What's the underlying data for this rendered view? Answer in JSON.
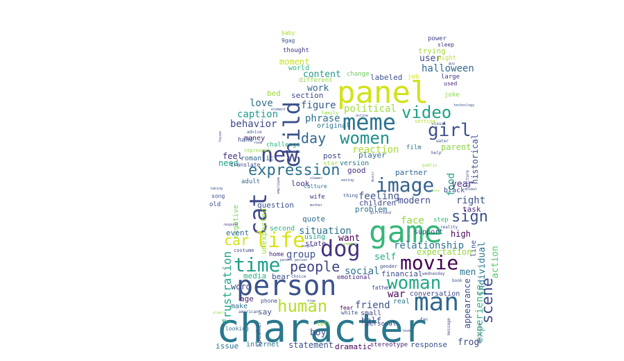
{
  "words": [
    {
      "text": "character",
      "color": "#2a788e"
    },
    {
      "text": "panel",
      "color": "#d2e21b"
    },
    {
      "text": "person",
      "color": "#3b528b"
    },
    {
      "text": "game",
      "color": "#35b779"
    },
    {
      "text": "meme",
      "color": "#2c728e"
    },
    {
      "text": "man",
      "color": "#31688e"
    },
    {
      "text": "movie",
      "color": "#440154"
    },
    {
      "text": "woman",
      "color": "#22a884"
    },
    {
      "text": "image",
      "color": "#33638d"
    },
    {
      "text": "dog",
      "color": "#46327e"
    },
    {
      "text": "cat",
      "color": "#3e4a89"
    },
    {
      "text": "child",
      "color": "#3b528b"
    },
    {
      "text": "new",
      "color": "#414487"
    },
    {
      "text": "life",
      "color": "#d8e219"
    },
    {
      "text": "time",
      "color": "#1f9e89"
    },
    {
      "text": "video",
      "color": "#1fa187"
    },
    {
      "text": "girl",
      "color": "#3b528b"
    },
    {
      "text": "women",
      "color": "#218f8d"
    },
    {
      "text": "human",
      "color": "#b5de2b"
    },
    {
      "text": "expression",
      "color": "#2d708e"
    },
    {
      "text": "scene",
      "color": "#3e4a89"
    },
    {
      "text": "people",
      "color": "#404688"
    },
    {
      "text": "car",
      "color": "#d2e21b"
    },
    {
      "text": "sign",
      "color": "#3b528b"
    },
    {
      "text": "day",
      "color": "#31688e"
    },
    {
      "text": "halloween",
      "color": "#31688e"
    },
    {
      "text": "user",
      "color": "#404688"
    },
    {
      "text": "trying",
      "color": "#a5db36"
    },
    {
      "text": "power",
      "color": "#3e4a89"
    },
    {
      "text": "sleep",
      "color": "#46337e"
    },
    {
      "text": "night",
      "color": "#c2df23"
    },
    {
      "text": "baby",
      "color": "#a2da37"
    },
    {
      "text": "9gag",
      "color": "#3b528b"
    },
    {
      "text": "thought",
      "color": "#46327e"
    },
    {
      "text": "moment",
      "color": "#c8e020"
    },
    {
      "text": "world",
      "color": "#2ab07f"
    },
    {
      "text": "different",
      "color": "#95d840"
    },
    {
      "text": "content",
      "color": "#1f9a8a"
    },
    {
      "text": "change",
      "color": "#6ccd5a"
    },
    {
      "text": "labeled",
      "color": "#3b528b"
    },
    {
      "text": "job",
      "color": "#d5e21a"
    },
    {
      "text": "large",
      "color": "#46337e"
    },
    {
      "text": "used",
      "color": "#482677"
    },
    {
      "text": "joke",
      "color": "#8bd646"
    },
    {
      "text": "work",
      "color": "#31688e"
    },
    {
      "text": "section",
      "color": "#3f4889"
    },
    {
      "text": "bed",
      "color": "#9bd93c"
    },
    {
      "text": "love",
      "color": "#2e6e8e"
    },
    {
      "text": "figure",
      "color": "#375a8c"
    },
    {
      "text": "political",
      "color": "#9fda3a"
    },
    {
      "text": "caption",
      "color": "#1f9a8a"
    },
    {
      "text": "phrase",
      "color": "#2d718e"
    },
    {
      "text": "original",
      "color": "#2e6e8e"
    },
    {
      "text": "behavior",
      "color": "#3f4788"
    },
    {
      "text": "parent",
      "color": "#8bd646"
    },
    {
      "text": "historical",
      "color": "#3b528b"
    },
    {
      "text": "money",
      "color": "#482475"
    },
    {
      "text": "hand",
      "color": "#3b528b"
    },
    {
      "text": "romantic",
      "color": "#31688e"
    },
    {
      "text": "challenge",
      "color": "#2ab07f"
    },
    {
      "text": "reaction",
      "color": "#a8db34"
    },
    {
      "text": "post",
      "color": "#3e4a89"
    },
    {
      "text": "player",
      "color": "#2e6e8e"
    },
    {
      "text": "film",
      "color": "#2c728e"
    },
    {
      "text": "feel",
      "color": "#472f7d"
    },
    {
      "text": "need",
      "color": "#1fa287"
    },
    {
      "text": "version",
      "color": "#2a788e"
    },
    {
      "text": "star",
      "color": "#a0da39"
    },
    {
      "text": "good",
      "color": "#46327e"
    },
    {
      "text": "partner",
      "color": "#31688e"
    },
    {
      "text": "food",
      "color": "#1fa187"
    },
    {
      "text": "year",
      "color": "#472a7a"
    },
    {
      "text": "right",
      "color": "#3b528b"
    },
    {
      "text": "feeling",
      "color": "#3b528b"
    },
    {
      "text": "children",
      "color": "#404688"
    },
    {
      "text": "modern",
      "color": "#3e4989"
    },
    {
      "text": "problem",
      "color": "#2c738e"
    },
    {
      "text": "black",
      "color": "#3e4a89"
    },
    {
      "text": "task",
      "color": "#482878"
    },
    {
      "text": "look",
      "color": "#46327e"
    },
    {
      "text": "wife",
      "color": "#472d7b"
    },
    {
      "text": "culture",
      "color": "#2a788e"
    },
    {
      "text": "adult",
      "color": "#31688e"
    },
    {
      "text": "question",
      "color": "#3b528b"
    },
    {
      "text": "negative",
      "color": "#7ad151"
    },
    {
      "text": "unexpected",
      "color": "#9fda3a"
    },
    {
      "text": "quote",
      "color": "#2f6c8e"
    },
    {
      "text": "face",
      "color": "#8fd744"
    },
    {
      "text": "step",
      "color": "#35b779"
    },
    {
      "text": "support",
      "color": "#3e4a89"
    },
    {
      "text": "situation",
      "color": "#2c728e"
    },
    {
      "text": "event",
      "color": "#31688e"
    },
    {
      "text": "second",
      "color": "#2ab07f"
    },
    {
      "text": "want",
      "color": "#440154"
    },
    {
      "text": "using",
      "color": "#1fa188"
    },
    {
      "text": "relationship",
      "color": "#2b758e"
    },
    {
      "text": "high",
      "color": "#440154"
    },
    {
      "text": "line",
      "color": "#3e4a89"
    },
    {
      "text": "expectation",
      "color": "#95d840"
    },
    {
      "text": "individual",
      "color": "#2a788e"
    },
    {
      "text": "action",
      "color": "#54c568"
    },
    {
      "text": "group",
      "color": "#3b528b"
    },
    {
      "text": "state",
      "color": "#46327e"
    },
    {
      "text": "self",
      "color": "#22a785"
    },
    {
      "text": "home",
      "color": "#482878"
    },
    {
      "text": "frustration",
      "color": "#20a486"
    },
    {
      "text": "social",
      "color": "#2d718e"
    },
    {
      "text": "men",
      "color": "#2c738e"
    },
    {
      "text": "experience",
      "color": "#35b779"
    },
    {
      "text": "appearance",
      "color": "#3e4a89"
    },
    {
      "text": "media",
      "color": "#2ab07f"
    },
    {
      "text": "bear",
      "color": "#3b528b"
    },
    {
      "text": "emotional",
      "color": "#482576"
    },
    {
      "text": "financial",
      "color": "#3e4a89"
    },
    {
      "text": "war",
      "color": "#440154"
    },
    {
      "text": "word",
      "color": "#3e4a89"
    },
    {
      "text": "age",
      "color": "#482475"
    },
    {
      "text": "make",
      "color": "#2c728e"
    },
    {
      "text": "say",
      "color": "#3e4a89"
    },
    {
      "text": "friend",
      "color": "#3b528b"
    },
    {
      "text": "real",
      "color": "#2c728e"
    },
    {
      "text": "conversation",
      "color": "#3e4a89"
    },
    {
      "text": "half",
      "color": "#3e4a89"
    },
    {
      "text": "small",
      "color": "#404688"
    },
    {
      "text": "white",
      "color": "#3b528b"
    },
    {
      "text": "boy",
      "color": "#3b528b"
    },
    {
      "text": "frog",
      "color": "#3e4a89"
    },
    {
      "text": "issue",
      "color": "#2c728e"
    },
    {
      "text": "internet",
      "color": "#2c728e"
    },
    {
      "text": "statement",
      "color": "#3b528b"
    },
    {
      "text": "dramatic",
      "color": "#440154"
    },
    {
      "text": "stereotype",
      "color": "#482878"
    },
    {
      "text": "response",
      "color": "#3b528b"
    },
    {
      "text": "personal",
      "color": "#3e4a89"
    },
    {
      "text": "phone",
      "color": "#3e4a89"
    },
    {
      "text": "looking",
      "color": "#2c728e"
    },
    {
      "text": "speaker",
      "color": "#3b528b"
    },
    {
      "text": "old",
      "color": "#3e4a89"
    },
    {
      "text": "song",
      "color": "#3e4a89"
    },
    {
      "text": "taking",
      "color": "#3b528b"
    },
    {
      "text": "respond",
      "color": "#46327e"
    },
    {
      "text": "costume",
      "color": "#3e4a89"
    },
    {
      "text": "american",
      "color": "#3b528b"
    },
    {
      "text": "translate",
      "color": "#3e4a89"
    },
    {
      "text": "represent",
      "color": "#8fd744"
    },
    {
      "text": "advice",
      "color": "#3b528b"
    },
    {
      "text": "fear",
      "color": "#440154"
    },
    {
      "text": "father",
      "color": "#3e4a89"
    },
    {
      "text": "gender",
      "color": "#3e4a89"
    },
    {
      "text": "left",
      "color": "#8fd744"
    },
    {
      "text": "public",
      "color": "#8fd744"
    },
    {
      "text": "help",
      "color": "#3e4a89"
    },
    {
      "text": "water",
      "color": "#3b528b"
    },
    {
      "text": "visual",
      "color": "#3e4a89"
    },
    {
      "text": "setting",
      "color": "#b5de2b"
    },
    {
      "text": "online",
      "color": "#3e4a89"
    },
    {
      "text": "family",
      "color": "#8fd744"
    },
    {
      "text": "technology",
      "color": "#3b528b"
    },
    {
      "text": "animal",
      "color": "#3e4a89"
    },
    {
      "text": "picture",
      "color": "#3e4a89"
    },
    {
      "text": "boss",
      "color": "#8fd744"
    },
    {
      "text": "reality",
      "color": "#3e4a89"
    },
    {
      "text": "choice",
      "color": "#3b528b"
    },
    {
      "text": "wednesday",
      "color": "#3e4a89"
    },
    {
      "text": "book",
      "color": "#3b528b"
    },
    {
      "text": "level",
      "color": "#3e4a89"
    },
    {
      "text": "fan",
      "color": "#3e4a89"
    },
    {
      "text": "decision",
      "color": "#3b528b"
    },
    {
      "text": "message",
      "color": "#3e4a89"
    },
    {
      "text": "older",
      "color": "#8fd744"
    },
    {
      "text": "element",
      "color": "#3e4a89"
    },
    {
      "text": "music",
      "color": "#3e4a89"
    },
    {
      "text": "mother",
      "color": "#3e4a89"
    },
    {
      "text": "couple",
      "color": "#3e4a89"
    },
    {
      "text": "comment",
      "color": "#8fd744"
    },
    {
      "text": "viewer",
      "color": "#3e4a89"
    },
    {
      "text": "thing",
      "color": "#3b528b"
    },
    {
      "text": "eating",
      "color": "#3e4a89"
    },
    {
      "text": "employee",
      "color": "#3e4a89"
    },
    {
      "text": "girlfriend",
      "color": "#3e4a89"
    },
    {
      "text": "parent person",
      "color": "#3e4a89"
    },
    {
      "text": "guy",
      "color": "#3e4a89"
    },
    {
      "text": "house",
      "color": "#3e4a89"
    },
    {
      "text": "room",
      "color": "#3e4a89"
    },
    {
      "text": "tree",
      "color": "#3e4a89"
    }
  ]
}
